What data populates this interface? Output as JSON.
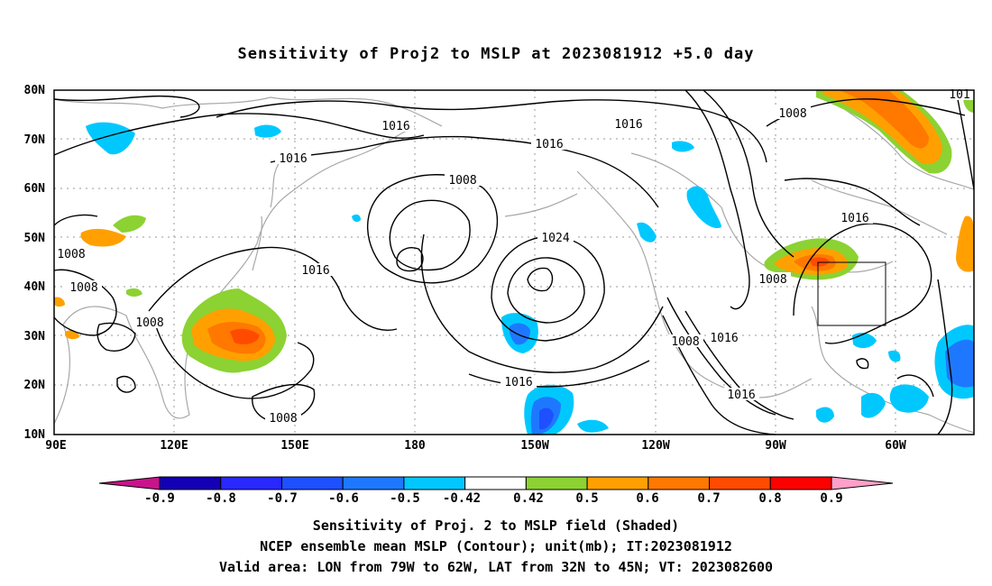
{
  "title": "Sensitivity of Proj2 to MSLP at 2023081912 +5.0 day",
  "map": {
    "lat_labels": [
      "80N",
      "70N",
      "60N",
      "50N",
      "40N",
      "30N",
      "20N",
      "10N"
    ],
    "lon_labels": [
      "90E",
      "120E",
      "150E",
      "180",
      "150W",
      "120W",
      "90W",
      "60W"
    ],
    "contour_labels": [
      "1016",
      "1016",
      "1016",
      "1016",
      "1016",
      "1016",
      "1016",
      "1016",
      "1008",
      "1008",
      "1008",
      "1008",
      "1008",
      "1008",
      "1008",
      "1008",
      "1024",
      "1016",
      "101"
    ],
    "box": {
      "lon_from": "79W",
      "lon_to": "62W",
      "lat_from": "32N",
      "lat_to": "45N"
    }
  },
  "colorbar": {
    "labels": [
      "-0.9",
      "-0.8",
      "-0.7",
      "-0.6",
      "-0.5",
      "-0.42",
      "0.42",
      "0.5",
      "0.6",
      "0.7",
      "0.8",
      "0.9"
    ],
    "colors": [
      "#1400b4",
      "#2828ff",
      "#1e50ff",
      "#1e78ff",
      "#00c8ff",
      "#ffffff",
      "#8cd232",
      "#ffa000",
      "#ff7800",
      "#ff4b00",
      "#ff0000"
    ],
    "under_color": "#c8148c",
    "over_color": "#ffa0c8"
  },
  "captions": [
    "Sensitivity of Proj. 2 to MSLP field (Shaded)",
    "NCEP ensemble mean MSLP (Contour); unit(mb); IT:2023081912",
    "Valid area: LON from 79W to 62W, LAT from 32N to 45N; VT: 2023082600"
  ]
}
